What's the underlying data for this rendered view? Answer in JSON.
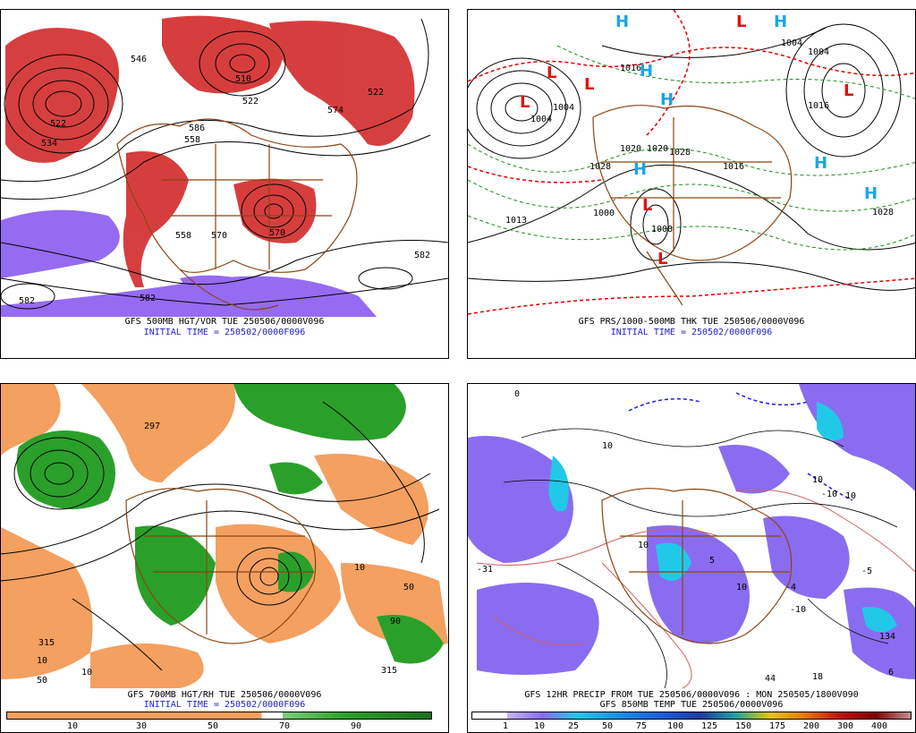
{
  "colors": {
    "vort_red": "#d22a2a",
    "vort_purple": "#8a5cf0",
    "thick_red": "#e00000",
    "thick_green": "#1e8c1e",
    "high_blue": "#1aa6e6",
    "low_red": "#e01010",
    "coast_brown": "#8b4513",
    "rh_orange": "#f3a060",
    "rh_green": "#2aa02a",
    "precip_purple": "#8a6cf0",
    "precip_cyan": "#22c8e8",
    "temp_red": "#d06060",
    "caption_blue": "#2222cc"
  },
  "panels": {
    "top_left": {
      "caption_line1": "GFS 500MB HGT/VOR TUE 250506/0000V096",
      "caption_line2": "INITIAL TIME = 250502/0000F096",
      "contour_labels": [
        "546",
        "510",
        "522",
        "522",
        "534",
        "586",
        "574",
        "558",
        "558",
        "570",
        "582",
        "582",
        "582",
        "570",
        "522"
      ]
    },
    "top_right": {
      "caption_line1": "GFS PRS/1000-500MB THK TUE 250506/0000V096",
      "caption_line2": "INITIAL TIME = 250502/0000F096",
      "highs": [
        "H",
        "H",
        "H",
        "H",
        "H",
        "H",
        "H"
      ],
      "lows": [
        "L",
        "L",
        "L",
        "L",
        "L",
        "L",
        "L"
      ],
      "pressure_labels": [
        "1004",
        "1004",
        "1016",
        "1028",
        "1020",
        "1020",
        "1028",
        "1013",
        "1004",
        "1004",
        "1016",
        "1028",
        "1000",
        "1008",
        "1016"
      ]
    },
    "bottom_left": {
      "caption_line1": "GFS 700MB HGT/RH TUE 250506/0000V096",
      "caption_line2": "INITIAL TIME = 250502/0000F096",
      "colorbar_ticks": [
        "10",
        "30",
        "50",
        "70",
        "90"
      ],
      "contour_labels": [
        "315",
        "297",
        "10",
        "50",
        "10",
        "50",
        "315",
        "90",
        "10"
      ]
    },
    "bottom_right": {
      "caption_line1": "GFS 12HR PRECIP FROM TUE 250506/0000V096 : MON 250505/1800V090",
      "caption_line2": "GFS 850MB TEMP TUE 250506/0000V096",
      "colorbar_ticks": [
        "1",
        "10",
        "25",
        "50",
        "75",
        "100",
        "125",
        "150",
        "175",
        "200",
        "300",
        "400"
      ],
      "contour_labels": [
        "0",
        "10",
        "10",
        "10",
        "10",
        "10",
        "5",
        "-5",
        "-10",
        "44",
        "18",
        "6",
        "-4",
        "-10",
        "-31",
        "134"
      ]
    }
  }
}
